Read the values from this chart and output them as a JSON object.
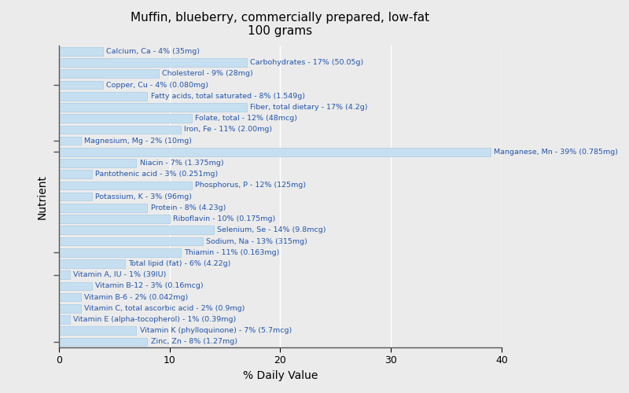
{
  "title": "Muffin, blueberry, commercially prepared, low-fat\n100 grams",
  "xlabel": "% Daily Value",
  "ylabel": "Nutrient",
  "bar_color": "#c5dff0",
  "bar_edge_color": "#a0c4e0",
  "background_color": "#ebebeb",
  "plot_bg_color": "#ebebeb",
  "xlim": [
    0,
    40
  ],
  "xticks": [
    0,
    10,
    20,
    30,
    40
  ],
  "label_color": "#2255aa",
  "label_fontsize": 6.8,
  "nutrients": [
    {
      "label": "Calcium, Ca - 4% (35mg)",
      "value": 4
    },
    {
      "label": "Carbohydrates - 17% (50.05g)",
      "value": 17
    },
    {
      "label": "Cholesterol - 9% (28mg)",
      "value": 9
    },
    {
      "label": "Copper, Cu - 4% (0.080mg)",
      "value": 4
    },
    {
      "label": "Fatty acids, total saturated - 8% (1.549g)",
      "value": 8
    },
    {
      "label": "Fiber, total dietary - 17% (4.2g)",
      "value": 17
    },
    {
      "label": "Folate, total - 12% (48mcg)",
      "value": 12
    },
    {
      "label": "Iron, Fe - 11% (2.00mg)",
      "value": 11
    },
    {
      "label": "Magnesium, Mg - 2% (10mg)",
      "value": 2
    },
    {
      "label": "Manganese, Mn - 39% (0.785mg)",
      "value": 39
    },
    {
      "label": "Niacin - 7% (1.375mg)",
      "value": 7
    },
    {
      "label": "Pantothenic acid - 3% (0.251mg)",
      "value": 3
    },
    {
      "label": "Phosphorus, P - 12% (125mg)",
      "value": 12
    },
    {
      "label": "Potassium, K - 3% (96mg)",
      "value": 3
    },
    {
      "label": "Protein - 8% (4.23g)",
      "value": 8
    },
    {
      "label": "Riboflavin - 10% (0.175mg)",
      "value": 10
    },
    {
      "label": "Selenium, Se - 14% (9.8mcg)",
      "value": 14
    },
    {
      "label": "Sodium, Na - 13% (315mg)",
      "value": 13
    },
    {
      "label": "Thiamin - 11% (0.163mg)",
      "value": 11
    },
    {
      "label": "Total lipid (fat) - 6% (4.22g)",
      "value": 6
    },
    {
      "label": "Vitamin A, IU - 1% (39IU)",
      "value": 1
    },
    {
      "label": "Vitamin B-12 - 3% (0.16mcg)",
      "value": 3
    },
    {
      "label": "Vitamin B-6 - 2% (0.042mg)",
      "value": 2
    },
    {
      "label": "Vitamin C, total ascorbic acid - 2% (0.9mg)",
      "value": 2
    },
    {
      "label": "Vitamin E (alpha-tocopherol) - 1% (0.39mg)",
      "value": 1
    },
    {
      "label": "Vitamin K (phylloquinone) - 7% (5.7mcg)",
      "value": 7
    },
    {
      "label": "Zinc, Zn - 8% (1.27mg)",
      "value": 8
    }
  ]
}
